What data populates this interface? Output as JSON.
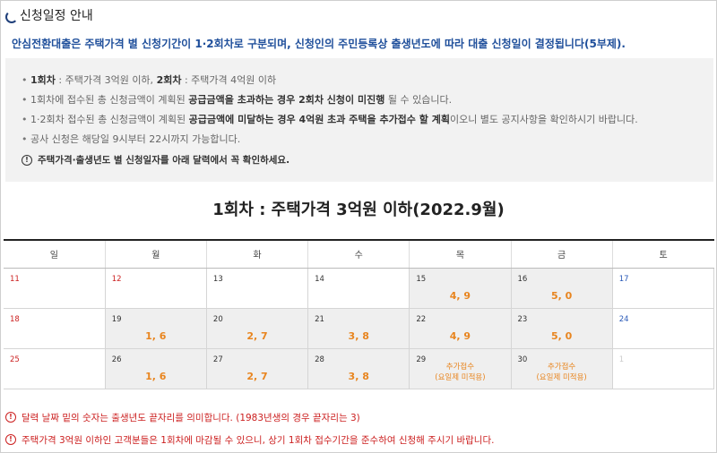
{
  "header": {
    "title": "신청일정 안내"
  },
  "intro": "안심전환대출은 주택가격 별 신청기간이 1·2회차로 구분되며, 신청인의 주민등록상 출생년도에 따라 대출 신청일이 결정됩니다(5부제).",
  "info": {
    "line1_a_bold": "1회차",
    "line1_a": " : 주택가격 3억원 이하, ",
    "line1_b_bold": "2회차",
    "line1_b": " : 주택가격 4억원 이하",
    "line2_a": "1회차에 접수된 총 신청금액이 계획된 ",
    "line2_bold": "공급금액을 초과하는 경우 2회차 신청이 미진행",
    "line2_b": " 될 수 있습니다.",
    "line3_a": "1·2회차 접수된 총 신청금액이 계획된 ",
    "line3_bold": "공급금액에 미달하는 경우 4억원 초과 주택을 추가접수 할 계획",
    "line3_b": "이오니 별도 공지사항을 확인하시기 바랍니다.",
    "line4": "공사 신청은 해당일 9시부터 22시까지 가능합니다.",
    "caution": "주택가격·출생년도 별 신청일자를 아래 달력에서 꼭 확인하세요."
  },
  "calendar": {
    "title": "1회차 : 주택가격 3억원 이하(2022.9월)",
    "weekdays": [
      "일",
      "월",
      "화",
      "수",
      "목",
      "금",
      "토"
    ],
    "weeks": [
      [
        {
          "day": "11",
          "kind": "sun",
          "shade": false,
          "val": ""
        },
        {
          "day": "12",
          "kind": "sun",
          "shade": false,
          "val": ""
        },
        {
          "day": "13",
          "kind": "",
          "shade": false,
          "val": ""
        },
        {
          "day": "14",
          "kind": "",
          "shade": false,
          "val": ""
        },
        {
          "day": "15",
          "kind": "",
          "shade": true,
          "val": "4, 9"
        },
        {
          "day": "16",
          "kind": "",
          "shade": true,
          "val": "5, 0"
        },
        {
          "day": "17",
          "kind": "sat",
          "shade": false,
          "val": ""
        }
      ],
      [
        {
          "day": "18",
          "kind": "sun",
          "shade": false,
          "val": ""
        },
        {
          "day": "19",
          "kind": "",
          "shade": true,
          "val": "1, 6"
        },
        {
          "day": "20",
          "kind": "",
          "shade": true,
          "val": "2, 7"
        },
        {
          "day": "21",
          "kind": "",
          "shade": true,
          "val": "3, 8"
        },
        {
          "day": "22",
          "kind": "",
          "shade": true,
          "val": "4, 9"
        },
        {
          "day": "23",
          "kind": "",
          "shade": true,
          "val": "5, 0"
        },
        {
          "day": "24",
          "kind": "sat",
          "shade": false,
          "val": ""
        }
      ],
      [
        {
          "day": "25",
          "kind": "sun",
          "shade": false,
          "val": ""
        },
        {
          "day": "26",
          "kind": "",
          "shade": true,
          "val": "1, 6"
        },
        {
          "day": "27",
          "kind": "",
          "shade": true,
          "val": "2, 7"
        },
        {
          "day": "28",
          "kind": "",
          "shade": true,
          "val": "3, 8"
        },
        {
          "day": "29",
          "kind": "",
          "shade": true,
          "val": "",
          "extra1": "추가접수",
          "extra2": "(요일제 미적용)"
        },
        {
          "day": "30",
          "kind": "",
          "shade": true,
          "val": "",
          "extra1": "추가접수",
          "extra2": "(요일제 미적용)"
        },
        {
          "day": "1",
          "kind": "muted",
          "shade": false,
          "val": ""
        }
      ]
    ]
  },
  "notes": [
    "달력 날짜 밑의 숫자는 출생년도 끝자리를 의미합니다. (1983년생의 경우 끝자리는 3)",
    "주택가격 3억원 이하인 고객분들은 1회차에 마감될 수 있으니, 상기 1회차 접수기간을 준수하여 신청해 주시기 바랍니다."
  ],
  "colors": {
    "accent_blue": "#1f4f9b",
    "orange": "#e8851f",
    "red": "#cc2020",
    "saturday": "#2a5ab8"
  }
}
